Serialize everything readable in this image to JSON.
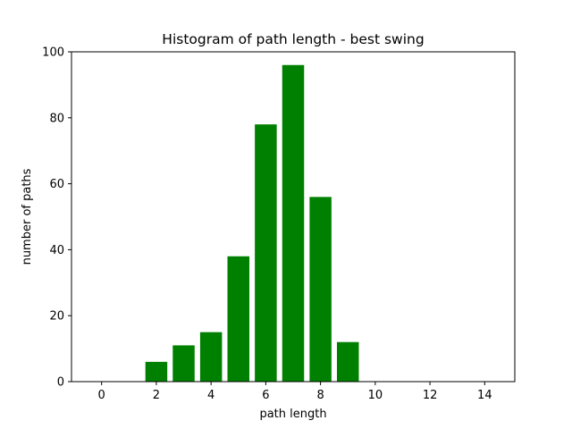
{
  "chart_data": {
    "type": "bar",
    "title": "Histogram of path length - best swing",
    "xlabel": "path length",
    "ylabel": "number of paths",
    "x": [
      2,
      3,
      4,
      5,
      6,
      7,
      8,
      9
    ],
    "values": [
      6,
      11,
      15,
      38,
      78,
      96,
      56,
      12
    ],
    "xlim": [
      -1.1,
      15.1
    ],
    "ylim": [
      0,
      100
    ],
    "xticks": [
      0,
      2,
      4,
      6,
      8,
      10,
      12,
      14
    ],
    "yticks": [
      0,
      20,
      40,
      60,
      80,
      100
    ],
    "bar_color": "#008000",
    "grid": false
  }
}
